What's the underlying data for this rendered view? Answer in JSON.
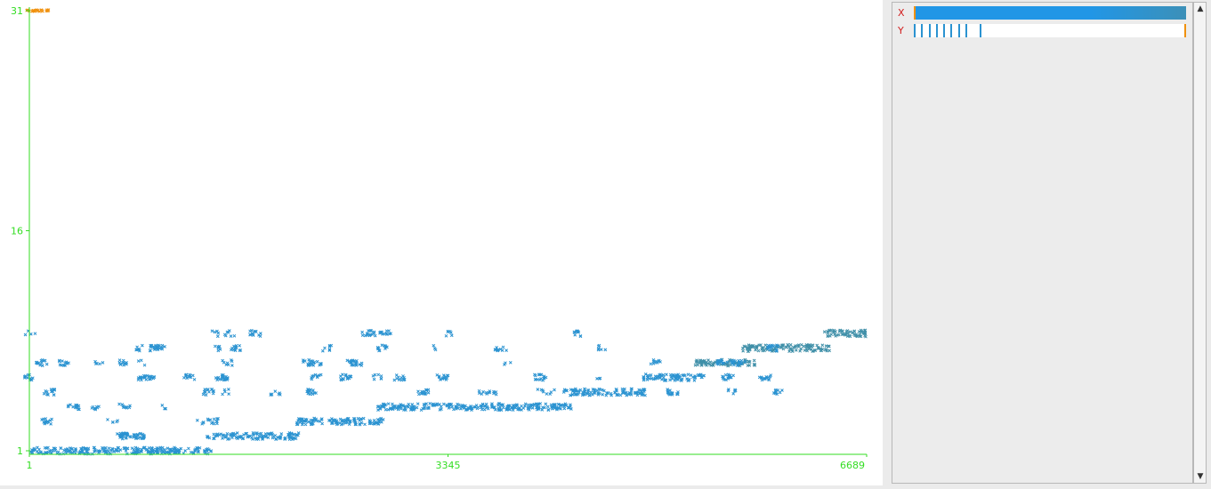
{
  "chart_data": {
    "type": "scatter",
    "title": "",
    "xlabel": "",
    "ylabel": "",
    "xlim": [
      1,
      6689
    ],
    "ylim": [
      1,
      31
    ],
    "x_ticks": [
      "1",
      "3345",
      "6689"
    ],
    "y_ticks": [
      "1",
      "16",
      "31"
    ],
    "grid": false,
    "marker": "x",
    "clusters": [
      {
        "x_start": 1,
        "x_end": 1460,
        "y": 1,
        "density": "dense"
      },
      {
        "x_start": 1420,
        "x_end": 2160,
        "y": 2,
        "density": "dense"
      },
      {
        "x_start": 2130,
        "x_end": 2830,
        "y": 3,
        "density": "dense"
      },
      {
        "x_start": 2780,
        "x_end": 4330,
        "y": 4,
        "density": "dense"
      },
      {
        "x_start": 4250,
        "x_end": 4930,
        "y": 5,
        "density": "dense"
      },
      {
        "x_start": 4900,
        "x_end": 5400,
        "y": 6,
        "density": "dense"
      },
      {
        "x_start": 5320,
        "x_end": 5800,
        "y": 7,
        "density": "dense"
      },
      {
        "x_start": 5700,
        "x_end": 6400,
        "y": 8,
        "density": "dense"
      },
      {
        "x_start": 6350,
        "x_end": 6689,
        "y": 9,
        "density": "dense"
      },
      {
        "x_start": 1,
        "x_end": 1500,
        "y": 2,
        "density": "sparse"
      },
      {
        "x_start": 1,
        "x_end": 1500,
        "y": 3,
        "density": "sparse"
      },
      {
        "x_start": 1,
        "x_end": 1500,
        "y": 4,
        "density": "sparse"
      },
      {
        "x_start": 1,
        "x_end": 1500,
        "y": 5,
        "density": "sparse"
      },
      {
        "x_start": 1,
        "x_end": 1500,
        "y": 6,
        "density": "sparse"
      },
      {
        "x_start": 1,
        "x_end": 1500,
        "y": 7,
        "density": "sparse"
      },
      {
        "x_start": 1,
        "x_end": 1100,
        "y": 8,
        "density": "sparse"
      },
      {
        "x_start": 1,
        "x_end": 200,
        "y": 9,
        "density": "sparse"
      },
      {
        "x_start": 1400,
        "x_end": 6000,
        "y": 5,
        "density": "sparse"
      },
      {
        "x_start": 1400,
        "x_end": 6000,
        "y": 6,
        "density": "sparse"
      },
      {
        "x_start": 1400,
        "x_end": 6000,
        "y": 7,
        "density": "sparse"
      },
      {
        "x_start": 1400,
        "x_end": 6000,
        "y": 8,
        "density": "sparse"
      },
      {
        "x_start": 1400,
        "x_end": 5600,
        "y": 9,
        "density": "sparse"
      }
    ],
    "outliers": [
      {
        "x": 20,
        "y": 31
      },
      {
        "x": 60,
        "y": 31
      },
      {
        "x": 100,
        "y": 31
      }
    ],
    "colors": {
      "points": "#2b93d1",
      "points_late": "#3f8fa8",
      "outliers": "#f0910e",
      "axis": "#33dd22"
    }
  },
  "side_panel": {
    "x_label": "X",
    "y_label": "Y",
    "x_range": [
      0,
      1
    ],
    "y_markers": [
      0.0,
      0.027,
      0.054,
      0.081,
      0.108,
      0.135,
      0.162,
      0.189,
      0.243
    ],
    "y_max_marker": 1.0
  },
  "scrollbar": {
    "up_icon": "up-arrow-icon",
    "down_icon": "down-arrow-icon"
  }
}
